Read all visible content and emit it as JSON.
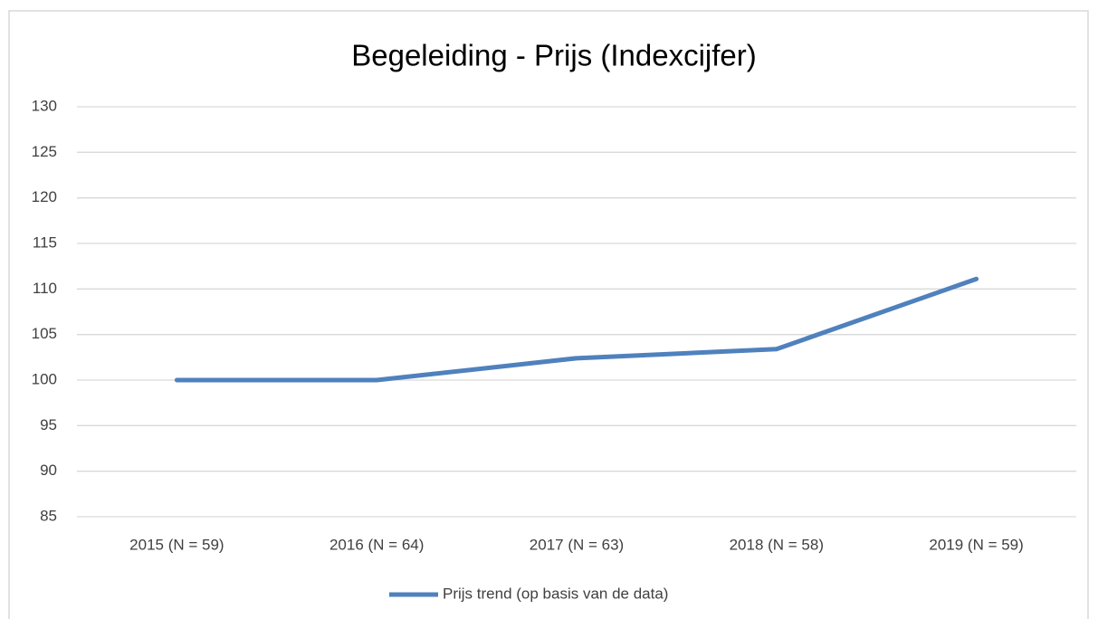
{
  "chart_data": {
    "type": "line",
    "title": "Begeleiding - Prijs (Indexcijfer)",
    "categories": [
      "2015 (N = 59)",
      "2016 (N = 64)",
      "2017 (N = 63)",
      "2018 (N = 58)",
      "2019 (N = 59)"
    ],
    "series": [
      {
        "name": "Prijs trend (op basis van de data)",
        "color": "#4f81bd",
        "values": [
          100,
          100,
          102.4,
          103.4,
          111.1
        ]
      }
    ],
    "ylim": [
      85,
      130
    ],
    "yticks": [
      85,
      90,
      95,
      100,
      105,
      110,
      115,
      120,
      125,
      130
    ],
    "grid": true,
    "legend": "bottom"
  }
}
